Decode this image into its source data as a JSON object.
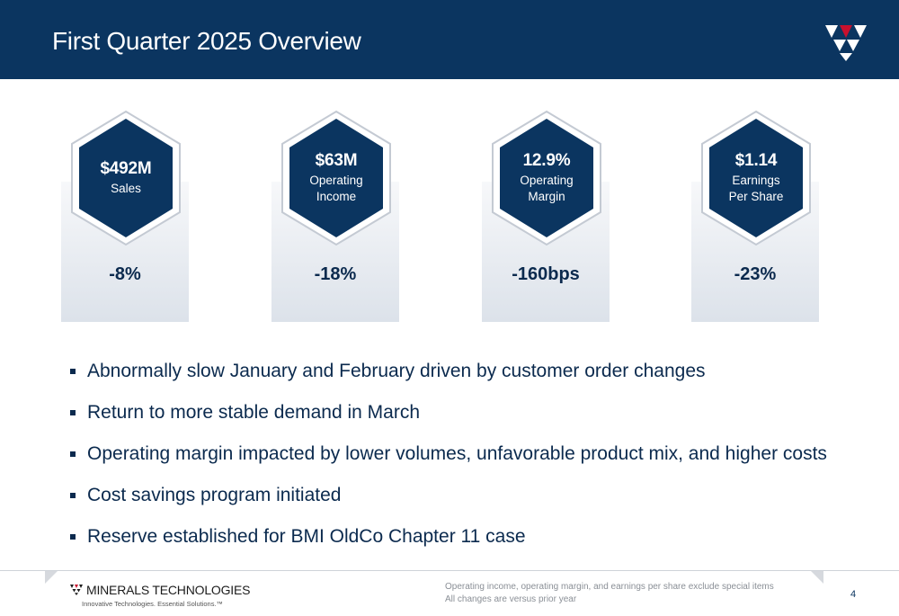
{
  "header": {
    "title": "First Quarter 2025 Overview",
    "logo_icon": "company-logo-icon"
  },
  "colors": {
    "navy": "#0b3560",
    "accent_red": "#c8102e",
    "text_navy": "#0b2a4e"
  },
  "kpis": [
    {
      "value": "$492M",
      "label": "Sales",
      "change": "-8%"
    },
    {
      "value": "$63M",
      "label": "Operating\nIncome",
      "change": "-18%"
    },
    {
      "value": "12.9%",
      "label": "Operating\nMargin",
      "change": "-160bps"
    },
    {
      "value": "$1.14",
      "label": "Earnings\nPer Share",
      "change": "-23%"
    }
  ],
  "bullets": [
    "Abnormally slow January and February driven by customer order changes",
    "Return to more stable demand in March",
    "Operating margin impacted by lower volumes, unfavorable product mix, and higher costs",
    "Cost savings program initiated",
    "Reserve established for BMI OldCo Chapter 11 case"
  ],
  "footer": {
    "brand_name": "MINERALS TECHNOLOGIES",
    "brand_tagline": "Innovative Technologies. Essential Solutions.™",
    "note_1": "Operating income, operating margin, and earnings per share exclude special items",
    "note_2": "All changes are versus prior year",
    "page_number": "4"
  }
}
